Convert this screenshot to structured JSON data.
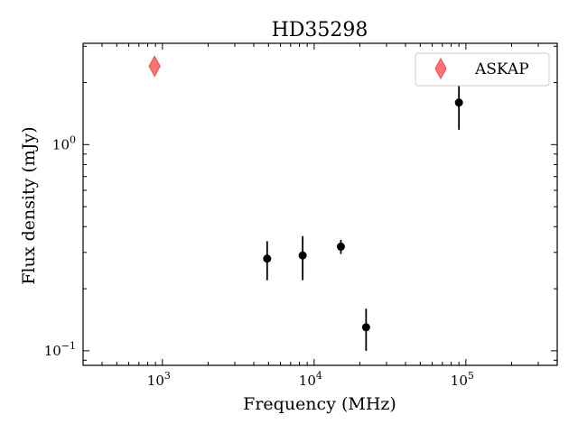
{
  "chart_data": {
    "type": "scatter",
    "title": "HD35298",
    "xlabel": "Frequency (MHz)",
    "ylabel": "Flux density (mJy)",
    "xscale": "log",
    "yscale": "log",
    "xlim": [
      300,
      400000
    ],
    "ylim": [
      0.085,
      3.1
    ],
    "x_ticks": [
      {
        "value": 1000,
        "base": "10",
        "exp": "3"
      },
      {
        "value": 10000,
        "base": "10",
        "exp": "4"
      },
      {
        "value": 100000,
        "base": "10",
        "exp": "5"
      }
    ],
    "y_ticks": [
      {
        "value": 1,
        "base": "10",
        "exp": "0"
      },
      {
        "value": 0.1,
        "base": "10",
        "exp": "−1"
      }
    ],
    "legend_position": "top-right",
    "series": [
      {
        "name": "ASKAP",
        "marker": "thin-diamond",
        "color": "#ff4444",
        "points": [
          {
            "x": 888,
            "y": 2.4
          }
        ]
      },
      {
        "marker": "circle",
        "color": "#000000",
        "points": [
          {
            "x": 4900,
            "y": 0.28,
            "ylow": 0.22,
            "yhigh": 0.34
          },
          {
            "x": 8400,
            "y": 0.29,
            "ylow": 0.22,
            "yhigh": 0.36
          },
          {
            "x": 15000,
            "y": 0.32,
            "ylow": 0.295,
            "yhigh": 0.345
          },
          {
            "x": 22000,
            "y": 0.13,
            "ylow": 0.1,
            "yhigh": 0.16
          },
          {
            "x": 90000,
            "y": 1.6,
            "ylow": 1.18,
            "yhigh": 2.05
          }
        ]
      }
    ]
  }
}
